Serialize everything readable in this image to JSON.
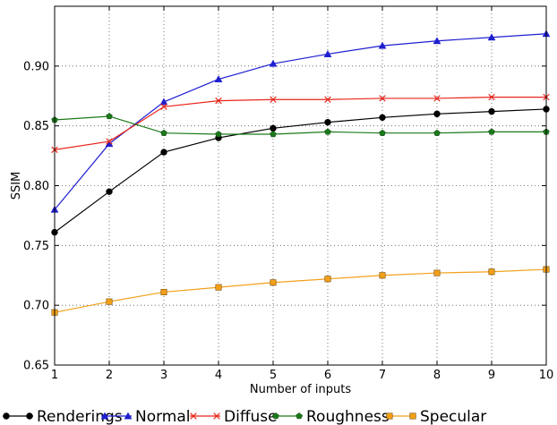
{
  "chart_data": {
    "type": "line",
    "title": "",
    "xlabel": "Number of inputs",
    "ylabel": "SSIM",
    "xlim": [
      1,
      10
    ],
    "ylim": [
      0.65,
      0.95
    ],
    "x": [
      1,
      2,
      3,
      4,
      5,
      6,
      7,
      8,
      9,
      10
    ],
    "xticks": [
      "1",
      "2",
      "3",
      "4",
      "5",
      "6",
      "7",
      "8",
      "9",
      "10"
    ],
    "yticks": [
      "0.65",
      "0.70",
      "0.75",
      "0.80",
      "0.85",
      "0.90"
    ],
    "grid": true,
    "legend_position": "bottom",
    "series": [
      {
        "name": "Renderings",
        "color": "#000000",
        "marker": "circle",
        "values": [
          0.761,
          0.795,
          0.828,
          0.84,
          0.848,
          0.853,
          0.857,
          0.86,
          0.862,
          0.864
        ]
      },
      {
        "name": "Normal",
        "color": "#1f1fd0",
        "marker": "triangle",
        "values": [
          0.78,
          0.835,
          0.87,
          0.889,
          0.902,
          0.91,
          0.917,
          0.921,
          0.924,
          0.927
        ]
      },
      {
        "name": "Diffuse",
        "color": "#e8261c",
        "marker": "x",
        "values": [
          0.83,
          0.837,
          0.866,
          0.871,
          0.872,
          0.872,
          0.873,
          0.873,
          0.874,
          0.874
        ]
      },
      {
        "name": "Roughness",
        "color": "#1a7a1a",
        "marker": "pentagon",
        "values": [
          0.855,
          0.858,
          0.844,
          0.843,
          0.843,
          0.845,
          0.844,
          0.844,
          0.845,
          0.845
        ]
      },
      {
        "name": "Specular",
        "color": "#f2a01a",
        "marker": "square",
        "values": [
          0.694,
          0.703,
          0.711,
          0.715,
          0.719,
          0.722,
          0.725,
          0.727,
          0.728,
          0.73
        ]
      }
    ]
  }
}
